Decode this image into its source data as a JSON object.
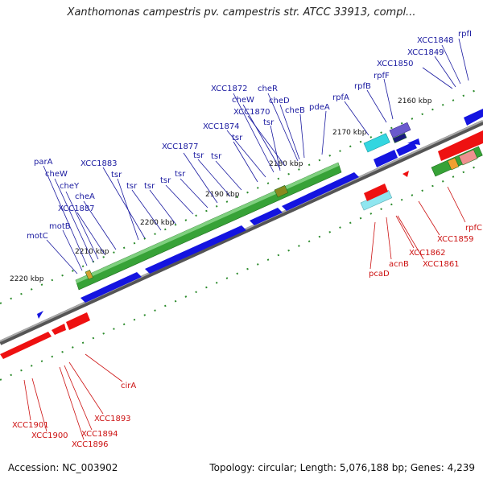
{
  "header": {
    "title": "Xanthomonas campestris pv. campestris str. ATCC 33913, compl..."
  },
  "footer": {
    "accession": "Accession: NC_003902",
    "summary": "Topology: circular; Length: 5,076,188 bp; Genes: 4,239"
  },
  "ticks": [
    {
      "label": "2160 kbp"
    },
    {
      "label": "2170 kbp"
    },
    {
      "label": "2180 kbp"
    },
    {
      "label": "2190 kbp"
    },
    {
      "label": "2200 kbp"
    },
    {
      "label": "2210 kbp"
    },
    {
      "label": "2220 kbp"
    }
  ],
  "colors": {
    "forward_label": "#1a1aa0",
    "reverse_label": "#cc1111",
    "forward_cds": "#1414e0",
    "reverse_cds": "#ee1111",
    "rna": "#2e8b2e"
  },
  "forward_labels": [
    "rpfI",
    "XCC1848",
    "XCC1849",
    "XCC1850",
    "rpfF",
    "rpfB",
    "rpfA",
    "pdeA",
    "cheB",
    "cheD",
    "tsr",
    "cheR",
    "XCC1870",
    "cheW",
    "XCC1872",
    "XCC1874",
    "tsr",
    "tsr",
    "tsr",
    "XCC1877",
    "tsr",
    "tsr",
    "tsr",
    "tsr",
    "XCC1883",
    "tsr",
    "cheA",
    "XCC1887",
    "cheY",
    "cheW",
    "parA",
    "motB",
    "motC"
  ],
  "reverse_labels": [
    "rpfC",
    "XCC1859",
    "XCC1861",
    "XCC1862",
    "acnB",
    "pcaD",
    "cirA",
    "XCC1893",
    "XCC1894",
    "XCC1896",
    "XCC1900",
    "XCC1901"
  ]
}
